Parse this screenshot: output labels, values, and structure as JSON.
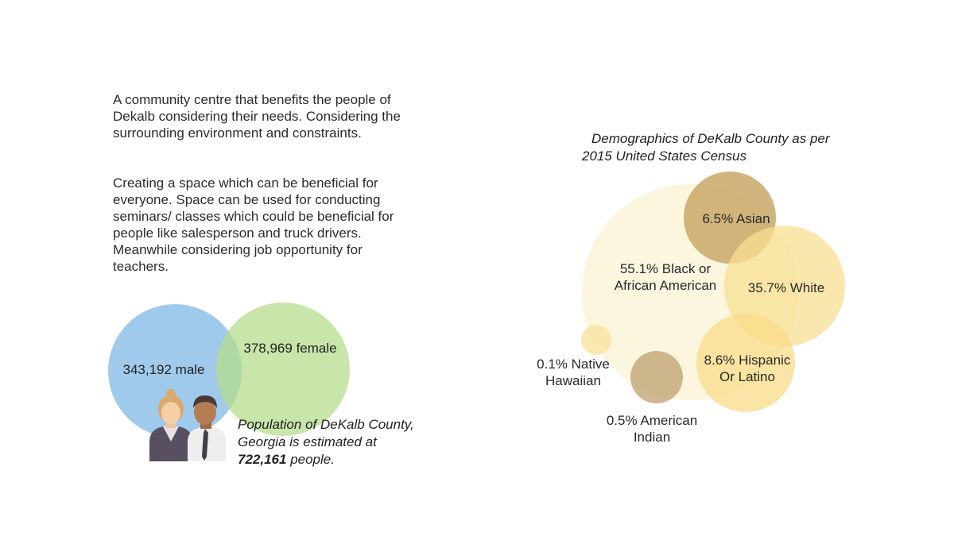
{
  "intro": {
    "paragraph1": " A community centre that benefits the people of Dekalb considering their needs. Considering the surrounding environment and constraints.",
    "paragraph2": "Creating a space which can be beneficial for everyone. Space can be used for conducting seminars/ classes which could be beneficial for people like salesperson and truck drivers. Meanwhile considering job opportunity for teachers."
  },
  "population": {
    "caption_prefix": "Population of DeKalb County, Georgia is estimated at",
    "total": "722,161",
    "caption_suffix": "people."
  },
  "demographics": {
    "title_line1": "Demographics of DeKalb County as per",
    "title_line2": "2015 United States Census"
  },
  "colors": {
    "male": "#8fc1e8",
    "female": "#b6dc8e",
    "black": "#fbf4d7",
    "asian": "#c9a868",
    "white": "#f8df92",
    "hispanic": "#f8dc88",
    "native": "#f8e4a3",
    "american_indian": "#c6aa7e"
  },
  "chart_data": [
    {
      "type": "bubble",
      "title": "Population of DeKalb County, Georgia",
      "series": [
        {
          "name": "male",
          "value": 343192,
          "label": "343,192 male",
          "color_key": "male"
        },
        {
          "name": "female",
          "value": 378969,
          "label": "378,969 female",
          "color_key": "female"
        }
      ]
    },
    {
      "type": "bubble",
      "title": "Demographics of DeKalb County as per 2015 United States Census",
      "series": [
        {
          "name": "Black or African American",
          "percent": 55.1,
          "label_lines": [
            "55.1% Black or",
            "African American"
          ],
          "color_key": "black"
        },
        {
          "name": "White",
          "percent": 35.7,
          "label_lines": [
            "35.7% White"
          ],
          "color_key": "white"
        },
        {
          "name": "Hispanic Or Latino",
          "percent": 8.6,
          "label_lines": [
            "8.6% Hispanic",
            "Or Latino"
          ],
          "color_key": "hispanic"
        },
        {
          "name": "Asian",
          "percent": 6.5,
          "label_lines": [
            "6.5% Asian"
          ],
          "color_key": "asian"
        },
        {
          "name": "American Indian",
          "percent": 0.5,
          "label_lines": [
            "0.5% American",
            "Indian"
          ],
          "color_key": "american_indian"
        },
        {
          "name": "Native Hawaiian",
          "percent": 0.1,
          "label_lines": [
            "0.1% Native",
            "Hawaiian"
          ],
          "color_key": "native"
        }
      ]
    }
  ]
}
